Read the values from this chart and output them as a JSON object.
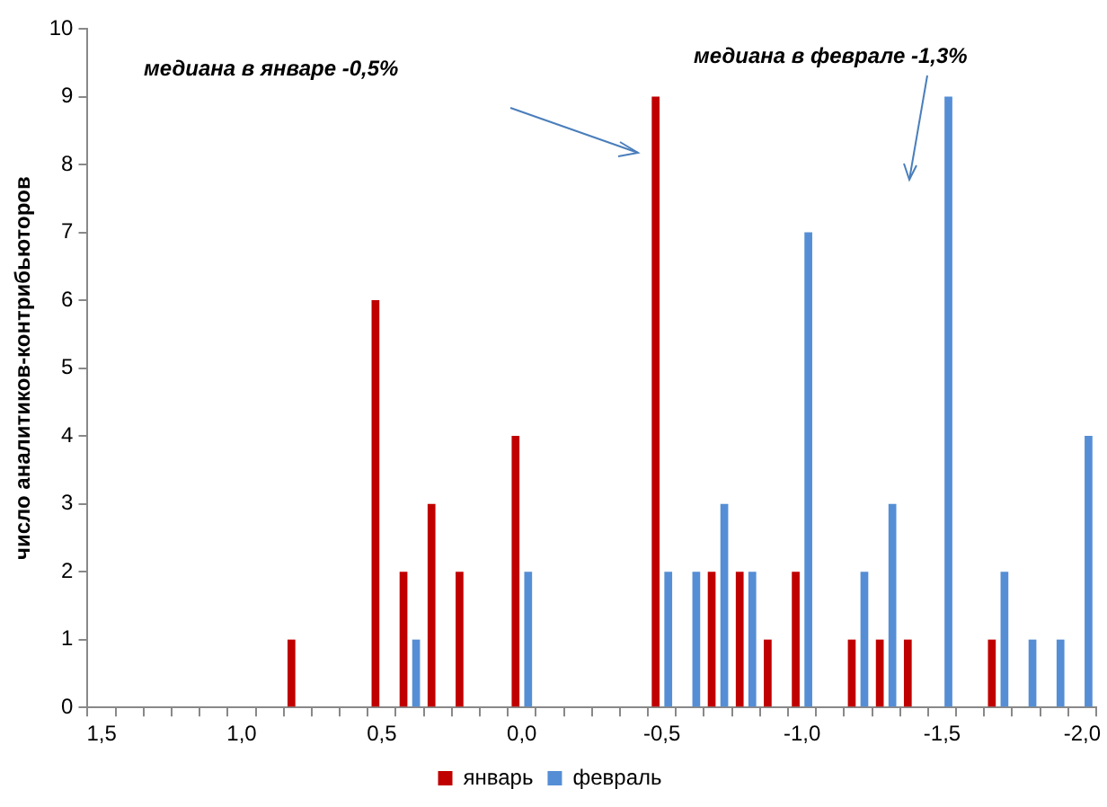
{
  "chart_data": {
    "type": "bar",
    "ylabel": "число аналитиков-контрибьюторов",
    "categories": [
      "1,5",
      null,
      null,
      null,
      null,
      "1,0",
      null,
      null,
      null,
      null,
      "0,5",
      null,
      null,
      null,
      null,
      "0,0",
      null,
      null,
      null,
      null,
      "-0,5",
      null,
      null,
      null,
      null,
      "-1,0",
      null,
      null,
      null,
      null,
      "-1,5",
      null,
      null,
      null,
      null,
      "-2,0"
    ],
    "series": [
      {
        "name": "январь",
        "color": "#c00000",
        "values": [
          0,
          0,
          0,
          0,
          0,
          0,
          0,
          1,
          0,
          0,
          6,
          2,
          3,
          2,
          0,
          4,
          0,
          0,
          0,
          0,
          9,
          0,
          2,
          2,
          1,
          2,
          0,
          1,
          1,
          1,
          0,
          0,
          1,
          0,
          0,
          0
        ]
      },
      {
        "name": "февраль",
        "color": "#558ed5",
        "values": [
          0,
          0,
          0,
          0,
          0,
          0,
          0,
          0,
          0,
          0,
          0,
          1,
          0,
          0,
          0,
          2,
          0,
          0,
          0,
          0,
          2,
          2,
          3,
          2,
          0,
          7,
          0,
          2,
          3,
          0,
          9,
          0,
          2,
          1,
          1,
          4
        ]
      }
    ],
    "ylim": [
      0,
      10
    ],
    "yticks": [
      0,
      1,
      2,
      3,
      4,
      5,
      6,
      7,
      8,
      9,
      10
    ],
    "grid": false,
    "legend": "bottom",
    "annotations": [
      "медиана в январе -0,5%",
      "медиана в феврале -1,3%"
    ]
  }
}
